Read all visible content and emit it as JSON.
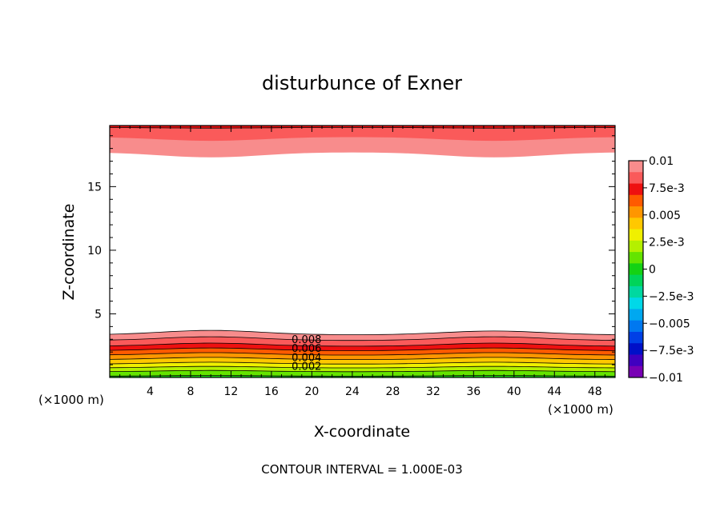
{
  "chart_data": {
    "type": "contour",
    "title": "disturbunce of Exner",
    "xlabel": "X-coordinate",
    "ylabel": "Z-coordinate",
    "x_unit_left": "(×1000 m)",
    "x_unit_right": "(×1000 m)",
    "xlim": [
      0,
      50
    ],
    "ylim": [
      0,
      19.8
    ],
    "xticks": [
      4,
      8,
      12,
      16,
      20,
      24,
      28,
      32,
      36,
      40,
      44,
      48
    ],
    "yticks": [
      5,
      10,
      15
    ],
    "footer": "CONTOUR INTERVAL = 1.000E-03",
    "contour_interval": 0.001,
    "contour_labels": [
      {
        "text": "0.008",
        "x": 18,
        "y": 2.7
      },
      {
        "text": "0.006",
        "x": 18,
        "y": 2.0
      },
      {
        "text": "0.004",
        "x": 18,
        "y": 1.3
      },
      {
        "text": "0.002",
        "x": 18,
        "y": 0.6
      }
    ],
    "colorbar": {
      "labels": [
        "0.01",
        "7.5e-3",
        "0.005",
        "2.5e-3",
        "0",
        "−2.5e-3",
        "−0.005",
        "−7.5e-3",
        "−0.01"
      ],
      "colors": [
        "#f88c8c",
        "#fa5a5a",
        "#ee1010",
        "#ff5a00",
        "#ff9600",
        "#ffc800",
        "#f0f000",
        "#b4f000",
        "#64e400",
        "#14d214",
        "#00d45a",
        "#00d8a0",
        "#00d8e8",
        "#00a8f0",
        "#0078f0",
        "#0040e6",
        "#0010c8",
        "#4000c0",
        "#7800b4"
      ]
    },
    "bands_lower": [
      {
        "level": 0.0005,
        "color": "#14d214",
        "z": 0.1,
        "bumps": [
          0.05,
          0.05
        ]
      },
      {
        "level": 0.001,
        "color": "#64e400",
        "z": 0.45,
        "bumps": [
          0.1,
          0.1
        ]
      },
      {
        "level": 0.0015,
        "color": "#b4f000",
        "z": 0.75,
        "bumps": [
          0.12,
          0.12
        ]
      },
      {
        "level": 0.002,
        "color": "#f0f000",
        "z": 1.05,
        "bumps": [
          0.15,
          0.15
        ]
      },
      {
        "level": 0.003,
        "color": "#ffc800",
        "z": 1.4,
        "bumps": [
          0.18,
          0.18
        ]
      },
      {
        "level": 0.004,
        "color": "#ff9600",
        "z": 1.75,
        "bumps": [
          0.2,
          0.2
        ]
      },
      {
        "level": 0.005,
        "color": "#ff5a00",
        "z": 2.1,
        "bumps": [
          0.22,
          0.22
        ]
      },
      {
        "level": 0.006,
        "color": "#ee1010",
        "z": 2.45,
        "bumps": [
          0.25,
          0.25
        ]
      },
      {
        "level": 0.008,
        "color": "#fa5a5a",
        "z": 2.9,
        "bumps": [
          0.3,
          0.3
        ]
      },
      {
        "level": 0.01,
        "color": "#f88c8c",
        "z": 3.35,
        "bumps": [
          0.35,
          0.3
        ]
      }
    ],
    "bands_upper": [
      {
        "level": 0.01,
        "color": "#f88c8c",
        "z": 17.7,
        "bumps": [
          -0.4,
          -0.4
        ]
      },
      {
        "level": 0.011,
        "color": "#fa5a5a",
        "z": 18.9,
        "bumps": [
          -0.3,
          -0.3
        ]
      },
      {
        "level": 0.012,
        "color": "#ee1010",
        "z": 19.65,
        "bumps": [
          -0.05,
          -0.05
        ]
      }
    ]
  }
}
